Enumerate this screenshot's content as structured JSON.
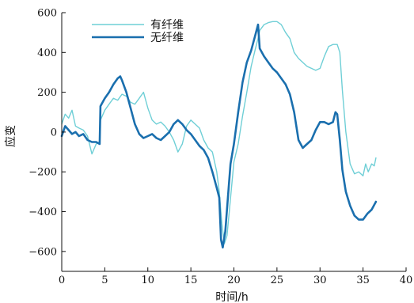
{
  "chart_data": {
    "type": "line",
    "xlabel": "时间/h",
    "ylabel": "应变",
    "xlim": [
      0,
      40
    ],
    "ylim": [
      -700,
      600
    ],
    "xticks": [
      0,
      5,
      10,
      15,
      20,
      25,
      30,
      35,
      40
    ],
    "yticks": [
      600,
      400,
      200,
      0,
      -200,
      -400,
      -600
    ],
    "grid": false,
    "legend_position": "top-center",
    "series": [
      {
        "name": "有纤维",
        "color": "#6fcfd6",
        "x": [
          0,
          0.4,
          0.8,
          1.2,
          1.6,
          2.0,
          2.5,
          3.0,
          3.5,
          4.0,
          4.4,
          4.5,
          5.0,
          5.5,
          6.0,
          6.5,
          7.0,
          7.5,
          8.0,
          8.5,
          9.0,
          9.5,
          10.0,
          10.5,
          11.0,
          11.5,
          12.0,
          12.5,
          13.0,
          13.5,
          14.0,
          14.5,
          15.0,
          15.5,
          16.0,
          16.5,
          17.0,
          17.5,
          18.0,
          18.3,
          18.6,
          18.9,
          19.2,
          19.5,
          20.0,
          20.5,
          21.0,
          21.5,
          22.0,
          22.5,
          22.8,
          23.0,
          23.5,
          24.0,
          24.5,
          25.0,
          25.5,
          26.0,
          26.5,
          27.0,
          27.5,
          28.0,
          28.5,
          29.0,
          29.5,
          30.0,
          30.5,
          31.0,
          31.5,
          32.0,
          32.3,
          32.6,
          33.0,
          33.5,
          34.0,
          34.5,
          35.0,
          35.3,
          35.6,
          36.0,
          36.3,
          36.5
        ],
        "values": [
          40,
          90,
          70,
          110,
          30,
          20,
          10,
          -20,
          -110,
          -60,
          -50,
          60,
          110,
          140,
          170,
          160,
          190,
          180,
          150,
          140,
          170,
          200,
          120,
          60,
          40,
          50,
          30,
          0,
          -40,
          -100,
          -60,
          30,
          60,
          40,
          20,
          -40,
          -80,
          -100,
          -200,
          -300,
          -460,
          -560,
          -520,
          -380,
          -150,
          -60,
          80,
          200,
          330,
          420,
          470,
          510,
          540,
          550,
          555,
          555,
          540,
          500,
          470,
          400,
          370,
          350,
          330,
          320,
          310,
          320,
          380,
          430,
          440,
          440,
          400,
          210,
          0,
          -160,
          -210,
          -200,
          -220,
          -160,
          -200,
          -160,
          -170,
          -130
        ]
      },
      {
        "name": "无纤维",
        "color": "#1a6fae",
        "x": [
          0,
          0.4,
          0.8,
          1.2,
          1.6,
          2.0,
          2.5,
          3.0,
          3.5,
          4.0,
          4.4,
          4.5,
          5.0,
          5.5,
          6.0,
          6.5,
          6.8,
          7.0,
          7.5,
          8.0,
          8.5,
          9.0,
          9.5,
          10.0,
          10.5,
          11.0,
          11.5,
          12.0,
          12.5,
          13.0,
          13.5,
          14.0,
          14.5,
          15.0,
          15.5,
          16.0,
          16.5,
          17.0,
          17.5,
          18.0,
          18.3,
          18.5,
          18.7,
          19.0,
          19.3,
          19.6,
          20.0,
          20.5,
          21.0,
          21.5,
          22.0,
          22.5,
          22.8,
          23.0,
          23.5,
          24.0,
          24.5,
          25.0,
          25.5,
          26.0,
          26.5,
          27.0,
          27.5,
          28.0,
          28.5,
          29.0,
          29.5,
          30.0,
          30.5,
          31.0,
          31.5,
          31.8,
          32.0,
          32.3,
          32.6,
          33.0,
          33.5,
          34.0,
          34.5,
          35.0,
          35.5,
          36.0,
          36.5
        ],
        "values": [
          -20,
          30,
          10,
          -10,
          0,
          -20,
          -10,
          -40,
          -50,
          -50,
          -60,
          130,
          170,
          200,
          240,
          270,
          280,
          260,
          200,
          120,
          40,
          -10,
          -30,
          -20,
          -10,
          -30,
          -40,
          -20,
          0,
          40,
          60,
          40,
          10,
          -10,
          -40,
          -70,
          -90,
          -130,
          -200,
          -280,
          -330,
          -540,
          -580,
          -500,
          -330,
          -160,
          -60,
          100,
          250,
          350,
          410,
          490,
          540,
          420,
          380,
          350,
          320,
          300,
          270,
          240,
          190,
          100,
          -40,
          -80,
          -60,
          -40,
          10,
          50,
          50,
          40,
          50,
          100,
          90,
          -40,
          -190,
          -300,
          -370,
          -420,
          -440,
          -440,
          -410,
          -390,
          -350
        ]
      }
    ]
  }
}
